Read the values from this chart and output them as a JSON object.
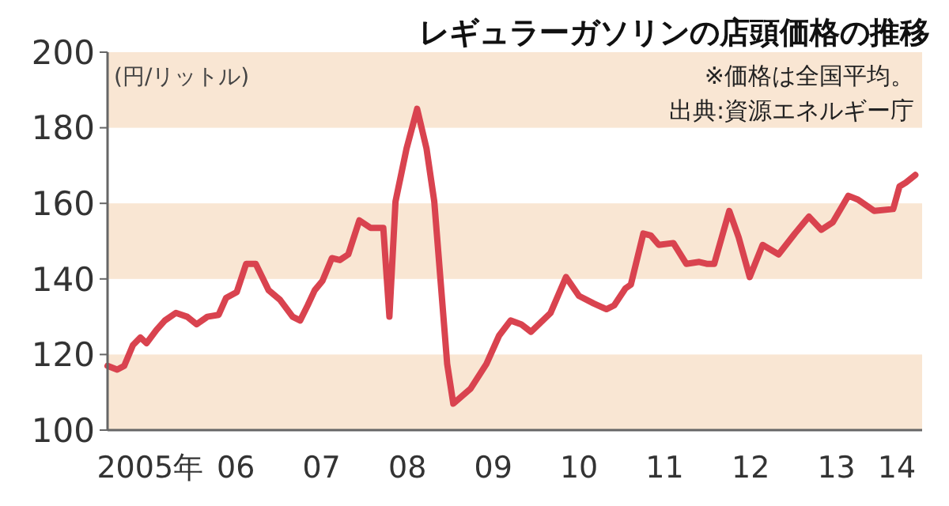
{
  "chart_data": {
    "type": "line",
    "title": "レギュラーガソリンの店頭価格の推移",
    "ylabel": "(円/リットル)",
    "annotations": [
      "※価格は全国平均。",
      "出典:資源エネルギー庁"
    ],
    "x": [
      "2005-01-01",
      "2005-02-11",
      "2005-03-13",
      "2005-04-19",
      "2005-05-21",
      "2005-06-16",
      "2005-07-28",
      "2005-09-02",
      "2005-10-19",
      "2005-12-06",
      "2006-01-15",
      "2006-03-02",
      "2006-04-19",
      "2006-05-21",
      "2006-07-05",
      "2006-08-14",
      "2006-09-24",
      "2006-11-18",
      "2007-01-05",
      "2007-02-28",
      "2007-04-01",
      "2007-05-03",
      "2007-06-02",
      "2007-07-05",
      "2007-08-14",
      "2007-09-17",
      "2007-10-23",
      "2007-12-09",
      "2008-01-26",
      "2008-03-20",
      "2008-04-15",
      "2008-05-11",
      "2008-06-27",
      "2008-08-11",
      "2008-09-20",
      "2008-10-23",
      "2008-12-17",
      "2009-01-12",
      "2009-03-27",
      "2009-06-02",
      "2009-07-26",
      "2009-09-13",
      "2009-10-28",
      "2009-12-09",
      "2010-03-02",
      "2010-05-07",
      "2010-07-01",
      "2010-09-02",
      "2010-10-26",
      "2010-11-28",
      "2011-01-15",
      "2011-02-07",
      "2011-04-01",
      "2011-05-03",
      "2011-06-06",
      "2011-08-07",
      "2011-10-01",
      "2011-11-25",
      "2011-12-27",
      "2012-01-28",
      "2012-04-01",
      "2012-05-11",
      "2012-06-27",
      "2012-08-21",
      "2012-10-28",
      "2013-01-05",
      "2013-03-06",
      "2013-04-28",
      "2013-06-16",
      "2013-08-21",
      "2013-10-01",
      "2013-12-09",
      "2014-02-28",
      "2014-03-27",
      "2014-04-23",
      "2014-06-02"
    ],
    "series": [
      {
        "color": "#d9434f",
        "values": [
          117,
          116,
          117,
          122.5,
          124.5,
          123,
          126.5,
          129,
          131,
          130,
          128,
          130,
          130.5,
          135,
          136.5,
          144,
          144,
          137,
          134.5,
          130,
          129,
          133,
          137,
          139.5,
          145.5,
          145,
          146.5,
          155.5,
          153.5,
          153.5,
          130,
          160.5,
          174.5,
          185,
          174.5,
          160.5,
          117.5,
          107,
          111,
          117.5,
          125,
          129,
          128,
          126,
          131,
          140.5,
          135.5,
          133.5,
          132,
          133,
          137.5,
          138.5,
          152,
          151.5,
          149,
          149.5,
          144,
          144.5,
          144,
          144,
          158,
          151,
          140.5,
          149,
          146.5,
          152,
          156.5,
          153,
          155,
          162,
          161,
          158,
          158.5,
          164.5,
          165.5,
          167.5
        ]
      }
    ],
    "xlim": [
      "2005-01-01",
      "2014-07-01"
    ],
    "xticks": [
      {
        "value": "2005-07-01",
        "label": "2005年"
      },
      {
        "value": "2006-07-01",
        "label": "06"
      },
      {
        "value": "2007-07-01",
        "label": "07"
      },
      {
        "value": "2008-07-01",
        "label": "08"
      },
      {
        "value": "2009-07-01",
        "label": "09"
      },
      {
        "value": "2010-07-01",
        "label": "10"
      },
      {
        "value": "2011-07-01",
        "label": "11"
      },
      {
        "value": "2012-07-01",
        "label": "12"
      },
      {
        "value": "2013-07-01",
        "label": "13"
      },
      {
        "value": "2014-03-15",
        "label": "14"
      }
    ],
    "ylim": [
      100,
      200
    ],
    "yticks": [
      100,
      120,
      140,
      160,
      180,
      200
    ],
    "bands": [
      {
        "axis": "y",
        "from": 100,
        "to": 120,
        "color": "#f9e6d3"
      },
      {
        "axis": "y",
        "from": 140,
        "to": 160,
        "color": "#f9e6d3"
      },
      {
        "axis": "y",
        "from": 180,
        "to": 200,
        "color": "#f9e6d3"
      }
    ],
    "grid": false,
    "marker": "none",
    "line_style": "solid"
  }
}
